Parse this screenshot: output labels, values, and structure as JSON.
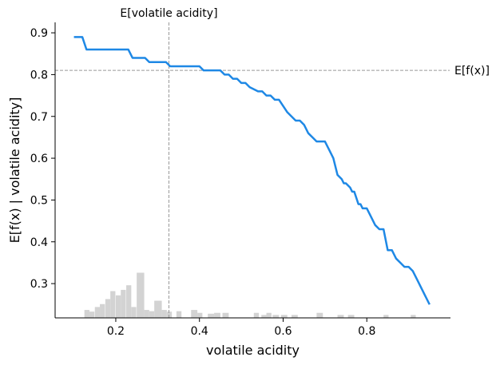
{
  "chart_data": {
    "type": "line",
    "xlabel": "volatile acidity",
    "ylabel": "E[f(x) | volatile acidity]",
    "xlim": [
      0.055,
      1.0
    ],
    "ylim": [
      0.218,
      0.925
    ],
    "x_ticks": [
      {
        "value": 0.2,
        "label": "0.2"
      },
      {
        "value": 0.4,
        "label": "0.4"
      },
      {
        "value": 0.6,
        "label": "0.6"
      },
      {
        "value": 0.8,
        "label": "0.8"
      }
    ],
    "y_ticks": [
      {
        "value": 0.3,
        "label": "0.3"
      },
      {
        "value": 0.4,
        "label": "0.4"
      },
      {
        "value": 0.5,
        "label": "0.5"
      },
      {
        "value": 0.6,
        "label": "0.6"
      },
      {
        "value": 0.7,
        "label": "0.7"
      },
      {
        "value": 0.8,
        "label": "0.8"
      },
      {
        "value": 0.9,
        "label": "0.9"
      }
    ],
    "grid": false,
    "series": [
      {
        "color": "#1e88e5",
        "x": [
          0.1,
          0.12,
          0.13,
          0.23,
          0.24,
          0.27,
          0.28,
          0.32,
          0.33,
          0.35,
          0.36,
          0.4,
          0.41,
          0.45,
          0.46,
          0.47,
          0.48,
          0.49,
          0.5,
          0.51,
          0.52,
          0.54,
          0.55,
          0.56,
          0.57,
          0.58,
          0.59,
          0.61,
          0.62,
          0.63,
          0.64,
          0.65,
          0.66,
          0.67,
          0.68,
          0.69,
          0.7,
          0.71,
          0.72,
          0.73,
          0.74,
          0.745,
          0.75,
          0.76,
          0.765,
          0.77,
          0.78,
          0.785,
          0.79,
          0.8,
          0.81,
          0.82,
          0.83,
          0.84,
          0.85,
          0.86,
          0.87,
          0.88,
          0.89,
          0.9,
          0.91,
          0.92,
          0.93,
          0.94,
          0.95
        ],
        "y": [
          0.89,
          0.89,
          0.86,
          0.86,
          0.84,
          0.84,
          0.83,
          0.83,
          0.82,
          0.82,
          0.82,
          0.82,
          0.81,
          0.81,
          0.8,
          0.8,
          0.79,
          0.79,
          0.78,
          0.78,
          0.77,
          0.76,
          0.76,
          0.75,
          0.75,
          0.74,
          0.74,
          0.71,
          0.7,
          0.69,
          0.69,
          0.68,
          0.66,
          0.65,
          0.64,
          0.64,
          0.64,
          0.62,
          0.6,
          0.56,
          0.55,
          0.54,
          0.54,
          0.53,
          0.52,
          0.52,
          0.49,
          0.49,
          0.48,
          0.48,
          0.46,
          0.44,
          0.43,
          0.43,
          0.38,
          0.38,
          0.36,
          0.35,
          0.34,
          0.34,
          0.33,
          0.31,
          0.29,
          0.27,
          0.25
        ]
      }
    ],
    "reference_lines": [
      {
        "axis": "x",
        "value": 0.327,
        "label": "E[volatile acidity]",
        "color": "#999999"
      },
      {
        "axis": "y",
        "value": 0.81,
        "label": "E[f(x)]",
        "color": "#999999"
      }
    ],
    "histogram": {
      "color": "#d3d3d3",
      "baseline": 0.218,
      "bins": [
        {
          "x": 0.125,
          "width": 0.012,
          "top": 0.237
        },
        {
          "x": 0.137,
          "width": 0.012,
          "top": 0.233
        },
        {
          "x": 0.15,
          "width": 0.012,
          "top": 0.244
        },
        {
          "x": 0.162,
          "width": 0.012,
          "top": 0.251
        },
        {
          "x": 0.175,
          "width": 0.012,
          "top": 0.263
        },
        {
          "x": 0.187,
          "width": 0.012,
          "top": 0.282
        },
        {
          "x": 0.2,
          "width": 0.012,
          "top": 0.272
        },
        {
          "x": 0.212,
          "width": 0.012,
          "top": 0.285
        },
        {
          "x": 0.225,
          "width": 0.012,
          "top": 0.296
        },
        {
          "x": 0.237,
          "width": 0.012,
          "top": 0.244
        },
        {
          "x": 0.25,
          "width": 0.018,
          "top": 0.326
        },
        {
          "x": 0.268,
          "width": 0.012,
          "top": 0.237
        },
        {
          "x": 0.28,
          "width": 0.012,
          "top": 0.234
        },
        {
          "x": 0.292,
          "width": 0.018,
          "top": 0.259
        },
        {
          "x": 0.31,
          "width": 0.012,
          "top": 0.237
        },
        {
          "x": 0.322,
          "width": 0.012,
          "top": 0.233
        },
        {
          "x": 0.345,
          "width": 0.012,
          "top": 0.234
        },
        {
          "x": 0.38,
          "width": 0.015,
          "top": 0.237
        },
        {
          "x": 0.395,
          "width": 0.012,
          "top": 0.23
        },
        {
          "x": 0.42,
          "width": 0.015,
          "top": 0.228
        },
        {
          "x": 0.435,
          "width": 0.015,
          "top": 0.23
        },
        {
          "x": 0.455,
          "width": 0.015,
          "top": 0.23
        },
        {
          "x": 0.53,
          "width": 0.012,
          "top": 0.23
        },
        {
          "x": 0.548,
          "width": 0.012,
          "top": 0.225
        },
        {
          "x": 0.56,
          "width": 0.012,
          "top": 0.23
        },
        {
          "x": 0.575,
          "width": 0.015,
          "top": 0.225
        },
        {
          "x": 0.595,
          "width": 0.015,
          "top": 0.225
        },
        {
          "x": 0.62,
          "width": 0.015,
          "top": 0.225
        },
        {
          "x": 0.68,
          "width": 0.015,
          "top": 0.23
        },
        {
          "x": 0.73,
          "width": 0.015,
          "top": 0.225
        },
        {
          "x": 0.755,
          "width": 0.015,
          "top": 0.225
        },
        {
          "x": 0.84,
          "width": 0.012,
          "top": 0.225
        },
        {
          "x": 0.905,
          "width": 0.012,
          "top": 0.225
        }
      ]
    }
  }
}
